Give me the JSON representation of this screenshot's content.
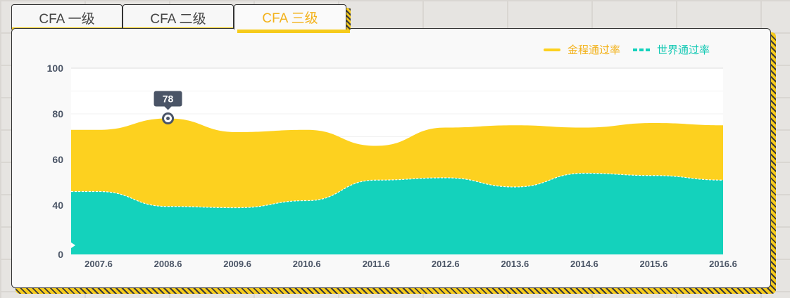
{
  "tabs": [
    {
      "label": "CFA 一级",
      "active": false
    },
    {
      "label": "CFA 二级",
      "active": false
    },
    {
      "label": "CFA 三级",
      "active": true
    }
  ],
  "colors": {
    "accent": "#f3b21b",
    "series_jincheng": "#fdd11f",
    "series_world": "#14d2bc",
    "tooltip_bg": "#4a5466"
  },
  "chart_data": {
    "type": "area",
    "categories": [
      "2007.6",
      "2008.6",
      "2009.6",
      "2010.6",
      "2011.6",
      "2012.6",
      "2013.6",
      "2014.6",
      "2015.6",
      "2016.6"
    ],
    "series": [
      {
        "name": "金程通过率",
        "values": [
          73,
          78,
          72,
          73,
          66,
          74,
          75,
          74,
          76,
          75
        ],
        "color": "#fdd11f",
        "line": "solid"
      },
      {
        "name": "世界通过率",
        "values": [
          46,
          39,
          38,
          42,
          51,
          52,
          48,
          54,
          53,
          51
        ],
        "color": "#14d2bc",
        "line": "dashed"
      }
    ],
    "y_ticks": [
      "0",
      "40",
      "60",
      "80",
      "100"
    ],
    "tooltip": {
      "category": "2008.6",
      "value": "78"
    },
    "legend_position": "top-right",
    "grid": true
  }
}
